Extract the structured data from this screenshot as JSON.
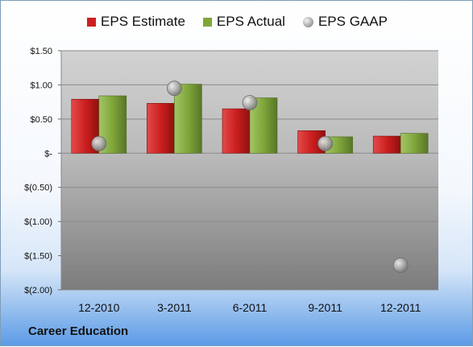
{
  "chart_data": {
    "type": "bar",
    "categories": [
      "12-2010",
      "3-2011",
      "6-2011",
      "9-2011",
      "12-2011"
    ],
    "series": [
      {
        "name": "EPS Estimate",
        "kind": "bar",
        "color": "#cc1f1f",
        "values": [
          0.79,
          0.73,
          0.65,
          0.33,
          0.25
        ]
      },
      {
        "name": "EPS Actual",
        "kind": "bar",
        "color": "#7fa63b",
        "values": [
          0.84,
          1.01,
          0.81,
          0.24,
          0.29
        ]
      },
      {
        "name": "EPS GAAP",
        "kind": "marker",
        "color": "#a8a8a8",
        "values": [
          0.14,
          0.95,
          0.74,
          0.14,
          -1.64
        ]
      }
    ],
    "ylim": [
      -2.0,
      1.5
    ],
    "yticks": [
      {
        "value": 1.5,
        "label": "$1.50"
      },
      {
        "value": 1.0,
        "label": "$1.00"
      },
      {
        "value": 0.5,
        "label": "$0.50"
      },
      {
        "value": 0.0,
        "label": "$-"
      },
      {
        "value": -0.5,
        "label": "$(0.50)"
      },
      {
        "value": -1.0,
        "label": "$(1.00)"
      },
      {
        "value": -1.5,
        "label": "$(1.50)"
      },
      {
        "value": -2.0,
        "label": "$(2.00)"
      }
    ],
    "grid": true,
    "legend_position": "top"
  },
  "company": "Career Education"
}
